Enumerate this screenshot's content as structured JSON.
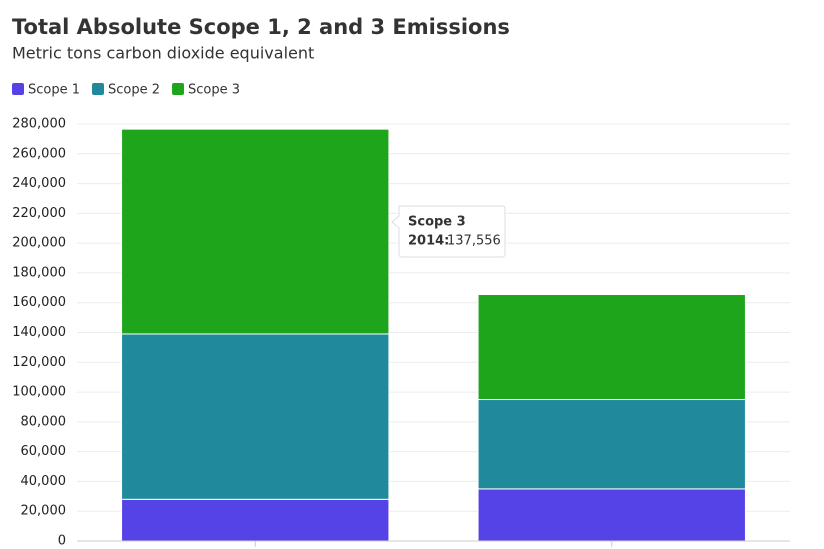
{
  "chart_data": {
    "type": "stacked_bar",
    "title": "Total Absolute Scope 1, 2 and 3 Emissions",
    "subtitle": "Metric tons carbon dioxide equivalent",
    "categories": [
      null,
      null
    ],
    "series": [
      {
        "name": "Scope 1",
        "color": "#5643e8",
        "values": [
          28000,
          35000
        ]
      },
      {
        "name": "Scope 2",
        "color": "#208a9c",
        "values": [
          111000,
          60000
        ]
      },
      {
        "name": "Scope 3",
        "color": "#1ea51c",
        "values": [
          137556,
          70500
        ]
      }
    ],
    "ylim": [
      0,
      280000
    ],
    "yticks": [
      0,
      {
        "value": 20000,
        "label": "20,000"
      },
      {
        "value": 40000,
        "label": "40,000"
      },
      {
        "value": 60000,
        "label": "60,000"
      },
      {
        "value": 80000,
        "label": "80,000"
      },
      {
        "value": 100000,
        "label": "100,000"
      },
      {
        "value": 120000,
        "label": "120,000"
      },
      {
        "value": 140000,
        "label": "140,000"
      },
      {
        "value": 160000,
        "label": "160,000"
      },
      {
        "value": 180000,
        "label": "180,000"
      },
      {
        "value": 200000,
        "label": "200,000"
      },
      {
        "value": 220000,
        "label": "220,000"
      },
      {
        "value": 240000,
        "label": "240,000"
      },
      {
        "value": 260000,
        "label": "260,000"
      },
      {
        "value": 280000,
        "label": "280,000"
      }
    ],
    "grid": true,
    "legend": "top-left",
    "tooltip": {
      "series": "Scope 3",
      "label": "2014:",
      "value": "137,556"
    }
  }
}
